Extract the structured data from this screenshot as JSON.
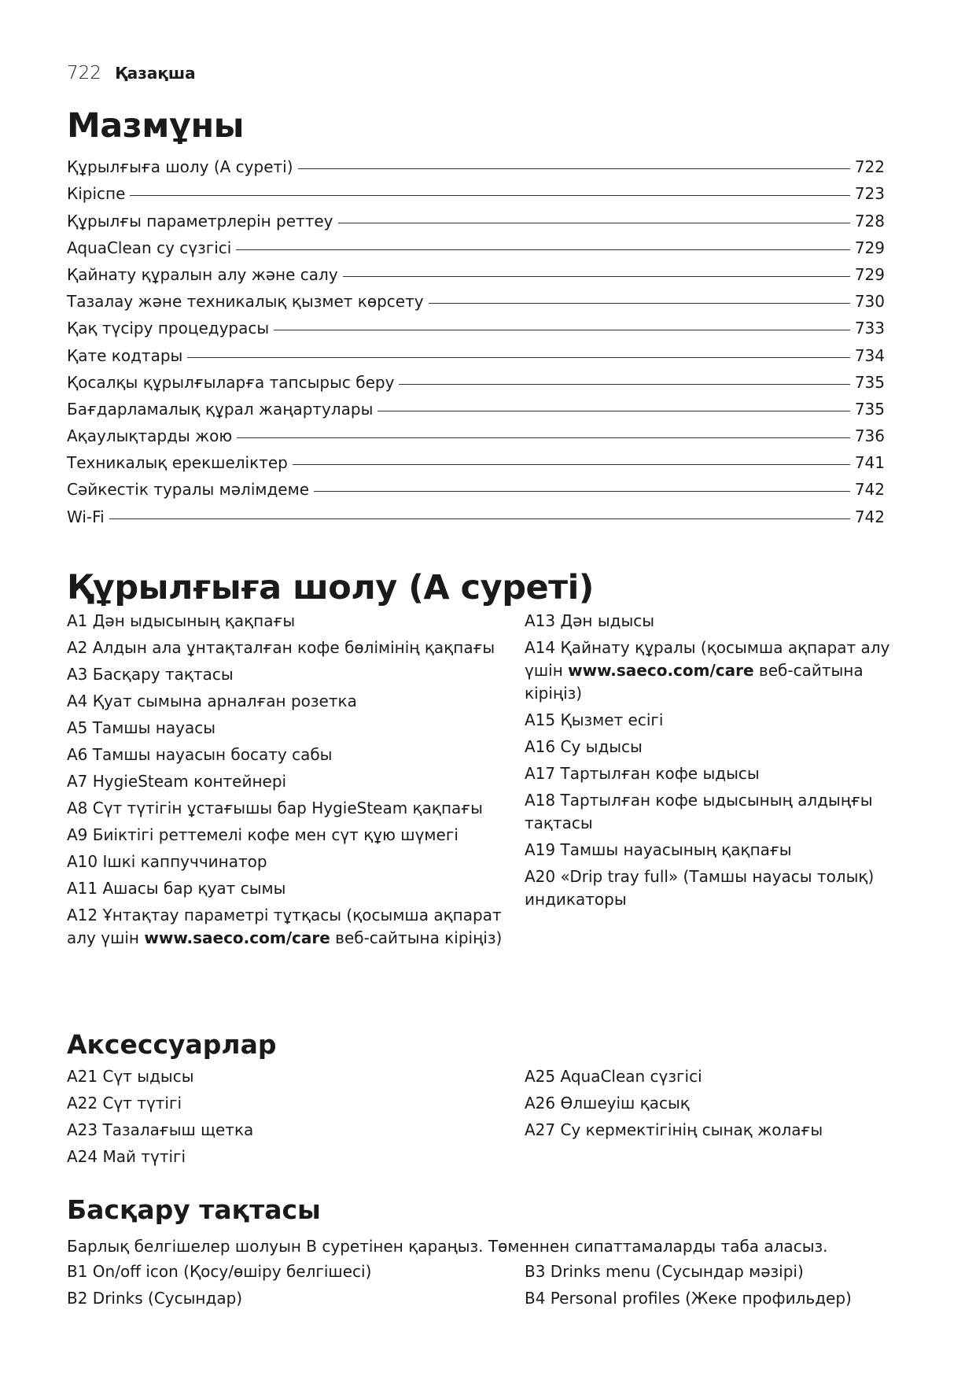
{
  "header": {
    "page_number": "722",
    "language": "Қазақша"
  },
  "toc": {
    "title": "Мазмұны",
    "entries": [
      {
        "title": "Құрылғыға шолу (А суреті)",
        "page": "722"
      },
      {
        "title": "Кіріспе",
        "page": "723"
      },
      {
        "title": "Құрылғы параметрлерін реттеу",
        "page": "728"
      },
      {
        "title": "AquaClean су сүзгісі",
        "page": "729"
      },
      {
        "title": "Қайнату құралын алу және салу",
        "page": "729"
      },
      {
        "title": "Тазалау және техникалық қызмет көрсету",
        "page": "730"
      },
      {
        "title": "Қақ түсіру процедурасы",
        "page": "733"
      },
      {
        "title": "Қате кодтары",
        "page": "734"
      },
      {
        "title": "Қосалқы құрылғыларға тапсырыс беру",
        "page": "735"
      },
      {
        "title": "Бағдарламалық құрал жаңартулары",
        "page": "735"
      },
      {
        "title": "Ақаулықтарды жою",
        "page": "736"
      },
      {
        "title": "Техникалық ерекшеліктер",
        "page": "741"
      },
      {
        "title": "Сәйкестік туралы мәлімдеме",
        "page": "742"
      },
      {
        "title": "Wi-Fi",
        "page": "742"
      }
    ]
  },
  "overview": {
    "title": "Құрылғыға шолу (А суреті)",
    "left": [
      {
        "text": "A1 Дән ыдысының қақпағы"
      },
      {
        "text": "A2 Алдын ала ұнтақталған кофе бөлімінің қақпағы"
      },
      {
        "text": "A3 Басқару тақтасы"
      },
      {
        "text": "A4 Қуат сымына арналған розетка"
      },
      {
        "text": "A5 Тамшы науасы"
      },
      {
        "text": "A6 Тамшы науасын босату сабы"
      },
      {
        "text": "A7 HygieSteam контейнері"
      },
      {
        "text": "A8 Сүт түтігін ұстағышы бар HygieSteam қақпағы"
      },
      {
        "text": "A9 Биіктігі реттемелі кофе мен сүт құю шүмегі"
      },
      {
        "text": "A10 Ішкі каппуччинатор"
      },
      {
        "text": "A11 Ашасы бар қуат сымы"
      },
      {
        "text": "A12 Ұнтақтау параметрі тұтқасы (қосымша ақпарат алу үшін ",
        "link": "www.saeco.com/care",
        "after": " веб-сайтына кіріңіз)"
      }
    ],
    "right": [
      {
        "text": "A13 Дән ыдысы"
      },
      {
        "text": "A14 Қайнату құралы (қосымша ақпарат алу үшін ",
        "link": "www.saeco.com/care",
        "after": " веб-сайтына кіріңіз)"
      },
      {
        "text": "A15 Қызмет есігі"
      },
      {
        "text": "A16 Су ыдысы"
      },
      {
        "text": "A17 Тартылған кофе ыдысы"
      },
      {
        "text": "A18 Тартылған кофе ыдысының алдыңғы тақтасы"
      },
      {
        "text": "A19 Тамшы науасының қақпағы"
      },
      {
        "text": "A20 «Drip tray full» (Тамшы науасы толық) индикаторы"
      }
    ]
  },
  "accessories": {
    "title": "Аксессуарлар",
    "left": [
      {
        "text": "A21 Сүт ыдысы"
      },
      {
        "text": "A22 Сүт түтігі"
      },
      {
        "text": "A23 Тазалағыш щетка"
      },
      {
        "text": "A24 Май түтігі"
      }
    ],
    "right": [
      {
        "text": "A25 AquaClean сүзгісі"
      },
      {
        "text": "A26 Өлшеуіш қасық"
      },
      {
        "text": "A27 Су кермектігінің сынақ жолағы"
      }
    ]
  },
  "control_panel": {
    "title": "Басқару тақтасы",
    "intro": "Барлық белгішелер шолуын В суретінен қараңыз. Төменнен сипаттамаларды таба аласыз.",
    "left": [
      {
        "text": "B1 On/off icon (Қосу/өшіру белгішесі)"
      },
      {
        "text": "B2 Drinks (Сусындар)"
      }
    ],
    "right": [
      {
        "text": "B3 Drinks menu (Сусындар мәзірі)"
      },
      {
        "text": "B4 Personal profiles (Жеке профильдер)"
      }
    ]
  }
}
